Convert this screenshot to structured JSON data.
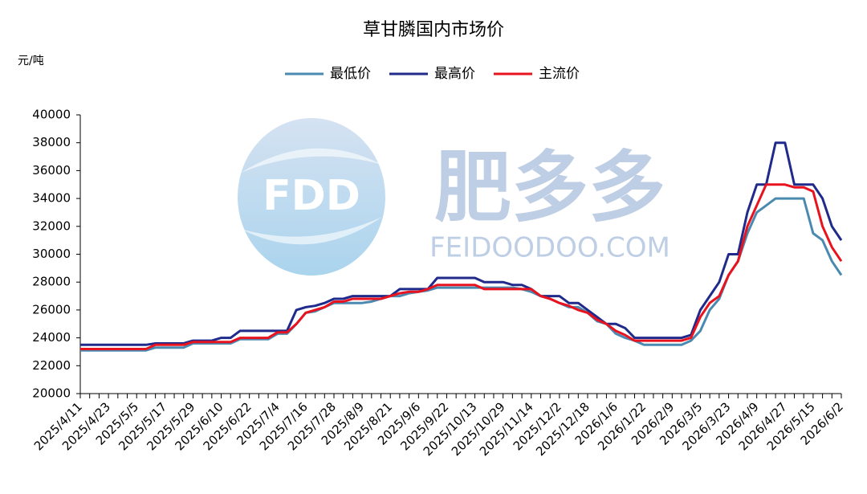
{
  "chart_data": {
    "type": "line",
    "title": "草甘膦国内市场价",
    "y_label": "元/吨",
    "watermark": {
      "logo": "FDD",
      "brand": "肥多多",
      "site": "FEIDOODOO.COM"
    },
    "legend": "top",
    "grid": false,
    "ylim": [
      20000,
      40000
    ],
    "yticks": [
      20000,
      22000,
      24000,
      26000,
      28000,
      30000,
      32000,
      34000,
      36000,
      38000,
      40000
    ],
    "categories": [
      "2025/4/11",
      null,
      null,
      "2025/4/23",
      null,
      null,
      "2025/5/5",
      null,
      null,
      "2025/5/17",
      null,
      null,
      "2025/5/29",
      null,
      null,
      "2025/6/10",
      null,
      null,
      "2025/6/22",
      null,
      null,
      "2025/7/4",
      null,
      null,
      "2025/7/16",
      null,
      null,
      "2025/7/28",
      null,
      null,
      "2025/8/9",
      null,
      null,
      "2025/8/21",
      null,
      null,
      "2025/9/6",
      null,
      null,
      "2025/9/22",
      null,
      null,
      "2025/10/13",
      null,
      null,
      "2025/10/29",
      null,
      null,
      "2025/11/14",
      null,
      null,
      "2025/12/2",
      null,
      null,
      "2025/12/18",
      null,
      null,
      "2026/1/6",
      null,
      null,
      "2026/1/22",
      null,
      null,
      "2026/2/9",
      null,
      null,
      "2026/3/5",
      null,
      null,
      "2026/3/23",
      null,
      null,
      "2026/4/9",
      null,
      null,
      "2026/4/27",
      null,
      null,
      "2026/5/15",
      null,
      null,
      "2026/6/2"
    ],
    "series": [
      {
        "name": "最低价",
        "color": "#4a8ab0",
        "values": [
          23100,
          23100,
          23100,
          23100,
          23100,
          23100,
          23100,
          23100,
          23300,
          23300,
          23300,
          23300,
          23600,
          23600,
          23600,
          23600,
          23600,
          23900,
          23900,
          23900,
          23900,
          24300,
          24300,
          25000,
          25800,
          25900,
          26200,
          26500,
          26500,
          26500,
          26500,
          26600,
          26800,
          27000,
          27000,
          27200,
          27300,
          27400,
          27600,
          27600,
          27600,
          27600,
          27600,
          27600,
          27600,
          27600,
          27600,
          27500,
          27300,
          27000,
          26800,
          26500,
          26200,
          26200,
          25800,
          25200,
          25000,
          24300,
          24000,
          23800,
          23500,
          23500,
          23500,
          23500,
          23500,
          23800,
          24500,
          26000,
          26800,
          28500,
          29500,
          31500,
          33000,
          33500,
          34000,
          34000,
          34000,
          34000,
          31500,
          31000,
          29500,
          28500
        ]
      },
      {
        "name": "最高价",
        "color": "#1f2a8a",
        "values": [
          23500,
          23500,
          23500,
          23500,
          23500,
          23500,
          23500,
          23500,
          23600,
          23600,
          23600,
          23600,
          23800,
          23800,
          23800,
          24000,
          24000,
          24500,
          24500,
          24500,
          24500,
          24500,
          24500,
          26000,
          26200,
          26300,
          26500,
          26800,
          26800,
          27000,
          27000,
          27000,
          27000,
          27000,
          27500,
          27500,
          27500,
          27500,
          28300,
          28300,
          28300,
          28300,
          28300,
          28000,
          28000,
          28000,
          27800,
          27800,
          27500,
          27000,
          27000,
          27000,
          26500,
          26500,
          26000,
          25500,
          25000,
          25000,
          24700,
          24000,
          24000,
          24000,
          24000,
          24000,
          24000,
          24200,
          26000,
          27000,
          28000,
          30000,
          30000,
          33000,
          35000,
          35000,
          38000,
          38000,
          35000,
          35000,
          35000,
          34000,
          32000,
          31000
        ]
      },
      {
        "name": "主流价",
        "color": "#e8131e",
        "values": [
          23200,
          23200,
          23200,
          23200,
          23200,
          23200,
          23200,
          23200,
          23500,
          23500,
          23500,
          23500,
          23700,
          23700,
          23700,
          23700,
          23700,
          24000,
          24000,
          24000,
          24000,
          24400,
          24400,
          25000,
          25800,
          26000,
          26200,
          26600,
          26600,
          26800,
          26800,
          26800,
          26800,
          27000,
          27200,
          27300,
          27300,
          27500,
          27800,
          27800,
          27800,
          27800,
          27800,
          27500,
          27500,
          27500,
          27500,
          27500,
          27500,
          27000,
          26800,
          26500,
          26300,
          26000,
          25800,
          25300,
          25000,
          24500,
          24200,
          23800,
          23800,
          23800,
          23800,
          23800,
          23800,
          24000,
          25500,
          26500,
          27000,
          28500,
          29500,
          32000,
          33500,
          35000,
          35000,
          35000,
          34800,
          34800,
          34500,
          32000,
          30500,
          29500
        ]
      }
    ]
  }
}
